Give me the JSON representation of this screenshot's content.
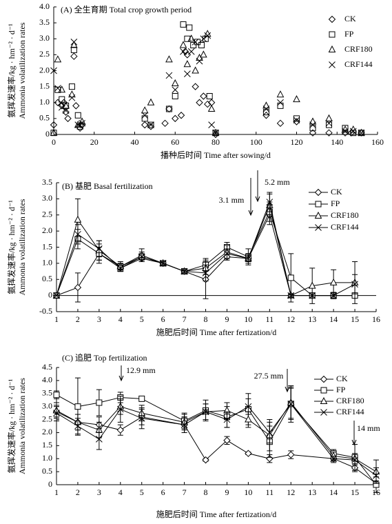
{
  "chart_data": [
    {
      "type": "scatter",
      "title": "(A) 全生育期 Total crop growth period",
      "xlabel": "播种后时间 Time after sowing/d",
      "ylabel": "氨挥发速率/kg · hm⁻² · d⁻¹",
      "ylabel_en": "Ammonia volatilization rates",
      "xlim": [
        0,
        160
      ],
      "xticks": [
        0,
        20,
        40,
        60,
        80,
        100,
        120,
        140,
        160
      ],
      "ylim": [
        0,
        4
      ],
      "yticks": [
        0,
        0.5,
        {
          "value": 1,
          "label": "1.0"
        },
        1.5,
        {
          "value": 2,
          "label": "2.0"
        },
        2.5,
        {
          "value": 3,
          "label": "3.0"
        },
        3.5,
        {
          "value": 4,
          "label": "4.0"
        }
      ],
      "series": [
        {
          "name": "CK",
          "marker": "diamond",
          "color": "#000000",
          "x": [
            0,
            2,
            4,
            5,
            6,
            7,
            10,
            11,
            13,
            14,
            45,
            48,
            55,
            57,
            60,
            63,
            65,
            66,
            70,
            72,
            74,
            76,
            78,
            80,
            105,
            112,
            120,
            128,
            136,
            144,
            147,
            152
          ],
          "values": [
            0.3,
            1.0,
            0.9,
            1.0,
            0.7,
            0.5,
            2.45,
            0.9,
            0.2,
            0.3,
            0.3,
            0.25,
            0.35,
            0.8,
            0.5,
            0.6,
            2.6,
            2.5,
            1.5,
            1.0,
            1.2,
            0.95,
            1.0,
            0.0,
            0.6,
            0.35,
            0.4,
            0.05,
            0.05,
            0.05,
            0.05,
            0.05
          ]
        },
        {
          "name": "FP",
          "marker": "square",
          "color": "#000000",
          "x": [
            0,
            2,
            4,
            6,
            9,
            10,
            12,
            13,
            45,
            48,
            57,
            60,
            64,
            66,
            67,
            69,
            71,
            73,
            75,
            77,
            80,
            105,
            112,
            120,
            128,
            136,
            144,
            148,
            152
          ],
          "values": [
            0.05,
            1.4,
            1.1,
            0.9,
            1.5,
            2.65,
            0.6,
            0.25,
            0.5,
            0.3,
            0.8,
            1.2,
            3.45,
            3.0,
            3.35,
            2.8,
            2.9,
            2.8,
            3.0,
            1.2,
            0.05,
            0.7,
            0.9,
            0.5,
            0.2,
            0.3,
            0.2,
            0.05,
            0.05
          ]
        },
        {
          "name": "CRF180",
          "marker": "triangle",
          "color": "#000000",
          "x": [
            0,
            2,
            4,
            6,
            9,
            10,
            12,
            14,
            45,
            48,
            57,
            60,
            64,
            66,
            68,
            70,
            72,
            74,
            76,
            78,
            80,
            105,
            112,
            120,
            128,
            136,
            144,
            148,
            152
          ],
          "values": [
            0.05,
            2.35,
            1.4,
            0.9,
            1.25,
            2.8,
            0.3,
            0.4,
            0.75,
            1.0,
            2.35,
            1.6,
            2.8,
            2.2,
            3.0,
            2.0,
            2.4,
            2.5,
            3.15,
            0.8,
            0.05,
            0.9,
            1.25,
            1.1,
            0.4,
            0.5,
            0.15,
            0.15,
            0.05
          ]
        },
        {
          "name": "CRF144",
          "marker": "cross",
          "color": "#000000",
          "x": [
            0,
            2,
            4,
            6,
            9,
            10,
            12,
            14,
            45,
            48,
            57,
            60,
            64,
            66,
            68,
            70,
            72,
            74,
            76,
            78,
            80,
            105,
            112,
            120,
            128,
            136,
            144,
            148,
            152
          ],
          "values": [
            2.0,
            1.45,
            0.85,
            0.75,
            1.15,
            2.9,
            0.3,
            0.35,
            0.6,
            0.3,
            1.85,
            1.4,
            2.6,
            1.9,
            2.6,
            2.9,
            2.3,
            3.0,
            3.1,
            0.3,
            0.05,
            0.8,
            1.0,
            0.45,
            0.3,
            0.35,
            0.1,
            0.1,
            0.05
          ]
        }
      ]
    },
    {
      "type": "line",
      "title": "(B) 基肥 Basal fertilization",
      "xlabel": "施肥后时间 Time after fertization/d",
      "ylabel": "氨挥发速率/kg · hm⁻² · d⁻¹",
      "ylabel_en": "Ammonia volatilization rates",
      "annotations": [
        "3.1 mm",
        "5.2 mm"
      ],
      "xlim": [
        1,
        16
      ],
      "xticks": [
        1,
        2,
        3,
        4,
        5,
        6,
        7,
        8,
        9,
        10,
        11,
        12,
        13,
        14,
        15,
        16
      ],
      "ylim": [
        -0.5,
        3.5
      ],
      "yticks": [
        -0.5,
        0,
        0.5,
        {
          "value": 1,
          "label": "1.0"
        },
        1.5,
        {
          "value": 2,
          "label": "2.0"
        },
        2.5,
        {
          "value": 3,
          "label": "3.0"
        },
        3.5
      ],
      "series": [
        {
          "name": "CK",
          "marker": "diamond",
          "color": "#000000",
          "x": [
            1,
            2,
            3,
            4,
            5,
            6,
            7,
            8,
            9,
            10,
            11,
            12,
            13,
            14,
            15
          ],
          "values": [
            0,
            0.25,
            1.3,
            0.85,
            1.15,
            1.0,
            0.75,
            0.5,
            1.2,
            1.15,
            2.5,
            0,
            0,
            0,
            0
          ],
          "errors": [
            0,
            0.45,
            0.3,
            0.1,
            0.1,
            0.05,
            0.05,
            0.6,
            0.1,
            0.1,
            0.3,
            0.05,
            0.05,
            0.1,
            0.05
          ]
        },
        {
          "name": "FP",
          "marker": "square",
          "color": "#000000",
          "x": [
            1,
            2,
            3,
            4,
            5,
            6,
            7,
            8,
            9,
            10,
            11,
            12,
            13,
            14,
            15
          ],
          "values": [
            0,
            1.75,
            1.3,
            0.9,
            1.2,
            1.0,
            0.75,
            0.95,
            1.5,
            1.2,
            2.6,
            0.55,
            0,
            0,
            0
          ],
          "errors": [
            0,
            0.3,
            0.2,
            0.1,
            0.15,
            0.05,
            0.05,
            0.2,
            0.15,
            0.25,
            0.3,
            0.75,
            0.05,
            0.05,
            0.05
          ]
        },
        {
          "name": "CRF180",
          "marker": "triangle",
          "color": "#000000",
          "x": [
            1,
            2,
            3,
            4,
            5,
            6,
            7,
            8,
            9,
            10,
            11,
            12,
            13,
            14,
            15
          ],
          "values": [
            0,
            2.35,
            1.4,
            0.9,
            1.25,
            1.0,
            0.75,
            0.85,
            1.35,
            1.15,
            2.8,
            0,
            0.3,
            0.4,
            0.4
          ],
          "errors": [
            0,
            0.65,
            0.3,
            0.15,
            0.2,
            0.05,
            0.05,
            0.2,
            0.2,
            0.15,
            0.35,
            0.05,
            0.55,
            0.4,
            0.65
          ]
        },
        {
          "name": "CRF144",
          "marker": "cross",
          "color": "#000000",
          "x": [
            1,
            2,
            3,
            4,
            5,
            6,
            7,
            8,
            9,
            10,
            11,
            12,
            13,
            14,
            15
          ],
          "values": [
            0,
            1.9,
            1.45,
            0.85,
            1.2,
            1.0,
            0.75,
            0.7,
            1.3,
            1.15,
            2.9,
            0,
            0,
            0,
            0.35
          ],
          "errors": [
            0,
            0.3,
            0.25,
            0.1,
            0.1,
            0.05,
            0.05,
            0.25,
            0.15,
            0.1,
            0.3,
            0.05,
            0.05,
            0.05,
            0.3
          ]
        }
      ]
    },
    {
      "type": "line",
      "title": "(C) 追肥 Top fertilization",
      "xlabel": "施肥后时间 Time after fertization/d",
      "ylabel": "氨挥发速率/kg · hm⁻² · d⁻¹",
      "ylabel_en": "Ammonia volatilization rates",
      "annotations": [
        "12.9 mm",
        "27.5 mm",
        "14 mm"
      ],
      "xlim": [
        1,
        16
      ],
      "xticks": [
        1,
        2,
        3,
        4,
        5,
        6,
        7,
        8,
        9,
        10,
        11,
        12,
        13,
        14,
        15,
        16
      ],
      "ylim": [
        0,
        4.5
      ],
      "yticks": [
        0,
        0.5,
        {
          "value": 1,
          "label": "1.0"
        },
        1.5,
        {
          "value": 2,
          "label": "2.0"
        },
        2.5,
        {
          "value": 3,
          "label": "3.0"
        },
        3.5,
        {
          "value": 4,
          "label": "4.0"
        },
        4.5
      ],
      "series": [
        {
          "name": "CK",
          "marker": "diamond",
          "color": "#000000",
          "x": [
            1,
            2,
            3,
            4,
            5,
            7,
            8,
            9,
            10,
            11,
            12,
            14,
            15,
            16
          ],
          "values": [
            2.8,
            2.4,
            2.3,
            2.1,
            2.6,
            2.3,
            0.95,
            1.7,
            1.2,
            1.0,
            1.15,
            1.0,
            0.65,
            0.05
          ],
          "errors": [
            0.2,
            0.3,
            0.3,
            0.2,
            0.3,
            0.3,
            0.05,
            0.15,
            0.05,
            0.15,
            0.15,
            0.15,
            0.15,
            0.1
          ]
        },
        {
          "name": "FP",
          "marker": "square",
          "color": "#000000",
          "x": [
            1,
            2,
            3,
            4,
            5,
            7,
            8,
            9,
            10,
            11,
            12,
            14,
            15,
            16
          ],
          "values": [
            3.45,
            3.0,
            3.15,
            3.35,
            3.3,
            2.45,
            2.85,
            2.6,
            2.9,
            1.65,
            3.1,
            1.2,
            1.05,
            0.0
          ],
          "errors": [
            0.15,
            1.1,
            0.5,
            0.2,
            0.1,
            0.3,
            0.4,
            0.4,
            0.6,
            0.6,
            0.7,
            0.15,
            0.5,
            0.3
          ]
        },
        {
          "name": "CRF180",
          "marker": "triangle",
          "color": "#000000",
          "x": [
            1,
            2,
            3,
            4,
            5,
            7,
            8,
            9,
            10,
            11,
            12,
            14,
            15,
            16
          ],
          "values": [
            2.85,
            2.4,
            2.1,
            3.0,
            2.75,
            2.4,
            2.8,
            2.85,
            2.5,
            1.9,
            3.15,
            1.1,
            1.0,
            0.5
          ],
          "errors": [
            0.3,
            0.3,
            0.3,
            0.3,
            0.3,
            0.3,
            0.3,
            0.3,
            0.3,
            0.6,
            0.6,
            0.15,
            0.2,
            0.45
          ]
        },
        {
          "name": "CRF144",
          "marker": "cross",
          "color": "#000000",
          "x": [
            1,
            2,
            3,
            4,
            5,
            7,
            8,
            9,
            10,
            11,
            12,
            14,
            15,
            16
          ],
          "values": [
            2.75,
            2.25,
            1.75,
            2.9,
            2.55,
            2.3,
            2.8,
            2.5,
            3.0,
            2.0,
            3.1,
            1.0,
            0.95,
            0.35
          ],
          "errors": [
            0.3,
            0.3,
            0.4,
            0.5,
            0.4,
            0.3,
            0.3,
            0.3,
            0.3,
            0.4,
            0.6,
            0.1,
            0.2,
            0.3
          ]
        }
      ]
    }
  ]
}
